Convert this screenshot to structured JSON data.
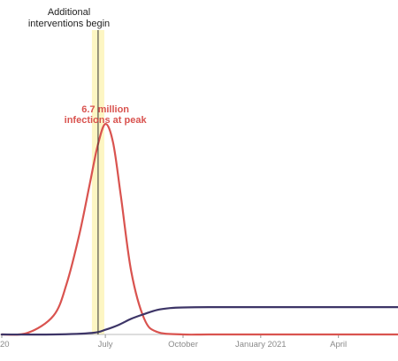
{
  "chart_data": {
    "type": "line",
    "title": "",
    "xlabel": "",
    "ylabel": "",
    "x_tick_labels": [
      "20",
      "July",
      "October",
      "January 2021",
      "April"
    ],
    "x_ticks_month_index": [
      0,
      4,
      7,
      10,
      13
    ],
    "xlim_month_index": [
      0,
      15.3
    ],
    "annotations": {
      "intervention_line1": "Additional",
      "intervention_line2": "interventions begin",
      "intervention_month_index": 3.72,
      "peak_line1": "6.7 million",
      "peak_line2": "infections at peak"
    },
    "peak_infections_millions": 6.7,
    "ylim_millions": [
      0,
      8.9
    ],
    "series": [
      {
        "color": "#d9534f",
        "month_index": [
          0.0,
          1.0,
          2.0,
          2.5,
          3.0,
          3.4,
          3.7,
          4.0,
          4.3,
          4.6,
          5.0,
          5.5,
          6.0,
          7.0,
          8.0,
          10.0,
          13.0,
          15.3
        ],
        "values_millions": [
          0.0,
          0.05,
          0.6,
          1.6,
          3.2,
          4.8,
          6.0,
          6.7,
          6.1,
          4.4,
          2.0,
          0.5,
          0.08,
          0.0,
          0.0,
          0.0,
          0.0,
          0.0
        ]
      },
      {
        "color": "#3d3567",
        "month_index": [
          0.0,
          2.0,
          3.5,
          4.0,
          4.5,
          5.0,
          5.5,
          6.0,
          6.5,
          7.0,
          8.0,
          10.0,
          13.0,
          15.3
        ],
        "values_millions": [
          0.0,
          0.0,
          0.05,
          0.15,
          0.3,
          0.5,
          0.65,
          0.78,
          0.84,
          0.86,
          0.87,
          0.87,
          0.87,
          0.87
        ]
      }
    ],
    "colors": {
      "band": "#fdf6c3",
      "baseline": "#bbbbbb",
      "intervention_line": "#333333",
      "tick": "#999999",
      "peak_label": "#d9534f"
    }
  }
}
